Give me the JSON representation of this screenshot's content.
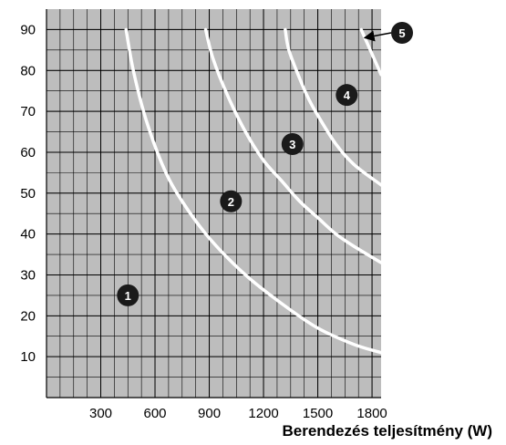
{
  "chart_data": {
    "type": "line",
    "xlabel": "Berendezés teljesítmény (W)",
    "ylabel": "",
    "xlim": [
      0,
      1850
    ],
    "ylim": [
      0,
      95
    ],
    "x_ticks": [
      300,
      600,
      900,
      1200,
      1500,
      1800
    ],
    "x_tick_labels": [
      "300",
      "600",
      "900",
      "1200",
      "1500",
      "1800"
    ],
    "y_ticks": [
      10,
      20,
      30,
      40,
      50,
      60,
      70,
      80,
      90
    ],
    "y_tick_labels": [
      "10",
      "20",
      "30",
      "40",
      "50",
      "60",
      "70",
      "80",
      "90"
    ],
    "x_minor_step": 75,
    "y_minor_step": 5,
    "grid": true,
    "background": "#bdbdbd",
    "grid_color": "#000000",
    "curve_color": "#ffffff",
    "series": [
      {
        "x": [
          440,
          480,
          550,
          650,
          750,
          900,
          1100,
          1300,
          1500,
          1700,
          1850
        ],
        "y": [
          90,
          80,
          68,
          56,
          48,
          39,
          30,
          23,
          17,
          13,
          11
        ]
      },
      {
        "x": [
          880,
          920,
          1000,
          1100,
          1200,
          1300,
          1400,
          1500,
          1600,
          1700,
          1850
        ],
        "y": [
          90,
          83,
          74,
          65,
          58,
          53,
          48,
          44,
          40,
          37,
          33
        ]
      },
      {
        "x": [
          1320,
          1340,
          1400,
          1450,
          1500,
          1600,
          1700,
          1850
        ],
        "y": [
          90,
          85,
          78,
          73,
          69,
          62,
          57,
          52
        ]
      },
      {
        "x": [
          1740,
          1800,
          1850
        ],
        "y": [
          90,
          84,
          79
        ]
      }
    ],
    "zones": [
      {
        "label": "1",
        "x": 450,
        "y": 25
      },
      {
        "label": "2",
        "x": 1020,
        "y": 48
      },
      {
        "label": "3",
        "x": 1360,
        "y": 62
      },
      {
        "label": "4",
        "x": 1660,
        "y": 74
      }
    ],
    "callout": {
      "label": "5",
      "x": 1750,
      "y": 88
    }
  }
}
